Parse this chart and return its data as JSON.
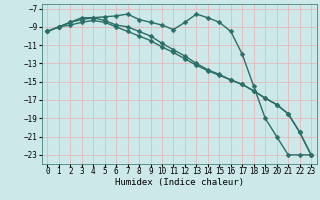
{
  "xlabel": "Humidex (Indice chaleur)",
  "background_color": "#cde8e8",
  "grid_color": "#e8b0b0",
  "line_color": "#2a6e68",
  "xlim": [
    -0.5,
    23.5
  ],
  "ylim": [
    -24.0,
    -6.5
  ],
  "yticks": [
    -7,
    -9,
    -11,
    -13,
    -15,
    -17,
    -19,
    -21,
    -23
  ],
  "xticks": [
    0,
    1,
    2,
    3,
    4,
    5,
    6,
    7,
    8,
    9,
    10,
    11,
    12,
    13,
    14,
    15,
    16,
    17,
    18,
    19,
    20,
    21,
    22,
    23
  ],
  "line1_x": [
    0,
    1,
    2,
    3,
    4,
    5,
    6,
    7,
    8,
    9,
    10,
    11,
    12,
    13,
    14,
    15,
    16,
    17,
    18,
    19,
    20,
    21,
    22,
    23
  ],
  "line1_y": [
    -9.5,
    -9.0,
    -8.5,
    -8.0,
    -8.0,
    -7.9,
    -7.8,
    -7.6,
    -8.2,
    -8.5,
    -8.8,
    -9.3,
    -8.5,
    -7.6,
    -8.0,
    -8.5,
    -9.5,
    -12.0,
    -15.5,
    -19.0,
    -21.0,
    -23.0,
    -23.0,
    -23.0
  ],
  "line2_x": [
    0,
    1,
    2,
    3,
    4,
    5,
    6,
    7,
    8,
    9,
    10,
    11,
    12,
    13,
    14,
    15,
    16,
    17,
    18,
    19,
    20,
    21,
    22,
    23
  ],
  "line2_y": [
    -9.5,
    -9.0,
    -8.5,
    -8.2,
    -8.0,
    -8.3,
    -8.8,
    -9.0,
    -9.5,
    -10.0,
    -10.8,
    -11.5,
    -12.2,
    -13.0,
    -13.7,
    -14.2,
    -14.8,
    -15.3,
    -16.0,
    -16.8,
    -17.5,
    -18.5,
    -20.5,
    -23.0
  ],
  "line3_x": [
    0,
    1,
    2,
    3,
    4,
    5,
    6,
    7,
    8,
    9,
    10,
    11,
    12,
    13,
    14,
    15,
    16,
    17,
    18,
    19,
    20,
    21,
    22,
    23
  ],
  "line3_y": [
    -9.5,
    -9.0,
    -8.8,
    -8.5,
    -8.3,
    -8.5,
    -9.0,
    -9.5,
    -10.0,
    -10.5,
    -11.2,
    -11.8,
    -12.5,
    -13.2,
    -13.8,
    -14.3,
    -14.8,
    -15.3,
    -16.0,
    -16.8,
    -17.5,
    -18.5,
    -20.5,
    -23.0
  ],
  "marker": "D",
  "marker_size": 2.5,
  "linewidth": 1.0,
  "tick_fontsize": 5.5,
  "label_fontsize": 6.5
}
